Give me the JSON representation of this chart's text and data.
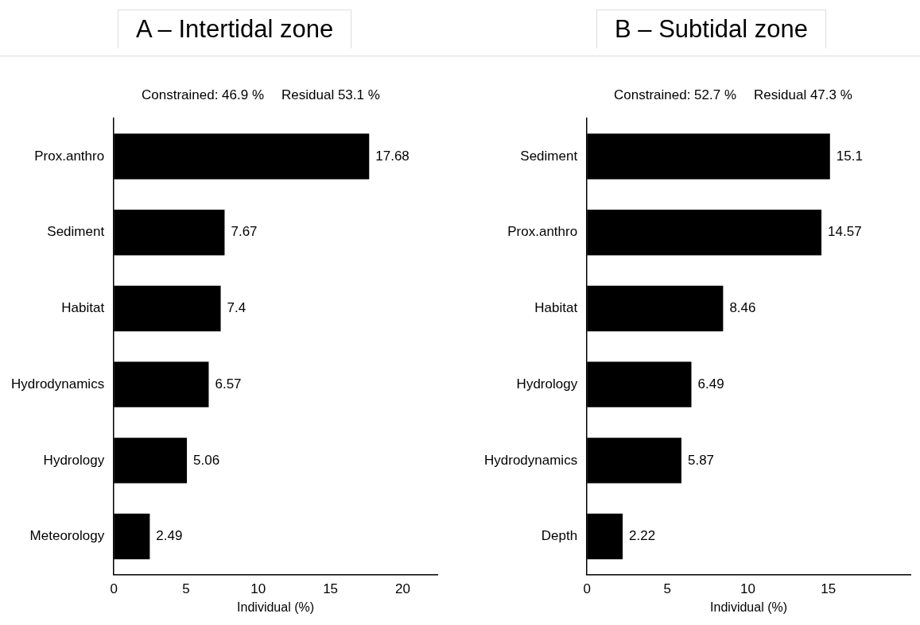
{
  "chart_data": [
    {
      "type": "bar",
      "orientation": "horizontal",
      "title": "A – Intertidal zone",
      "annotations": [
        "Constrained: 46.9 %",
        "Residual 53.1 %"
      ],
      "xlabel": "Individual (%)",
      "categories": [
        "Prox.anthro",
        "Sediment",
        "Habitat",
        "Hydrodynamics",
        "Hydrology",
        "Meteorology"
      ],
      "values": [
        17.68,
        7.67,
        7.4,
        6.57,
        5.06,
        2.49
      ],
      "color": "#000000",
      "xlim": [
        0,
        22.4
      ],
      "xticks": [
        0,
        5,
        10,
        15,
        20
      ],
      "data_labels": true,
      "grid": false,
      "legend": false
    },
    {
      "type": "bar",
      "orientation": "horizontal",
      "title": "B – Subtidal zone",
      "annotations": [
        "Constrained: 52.7 %",
        "Residual 47.3 %"
      ],
      "xlabel": "Individual (%)",
      "categories": [
        "Sediment",
        "Prox.anthro",
        "Habitat",
        "Hydrology",
        "Hydrodynamics",
        "Depth"
      ],
      "values": [
        15.1,
        14.57,
        8.46,
        6.49,
        5.87,
        2.22
      ],
      "color": "#000000",
      "xlim": [
        0,
        20.1
      ],
      "xticks": [
        0,
        5,
        10,
        15
      ],
      "data_labels": true,
      "grid": false,
      "legend": false
    }
  ]
}
